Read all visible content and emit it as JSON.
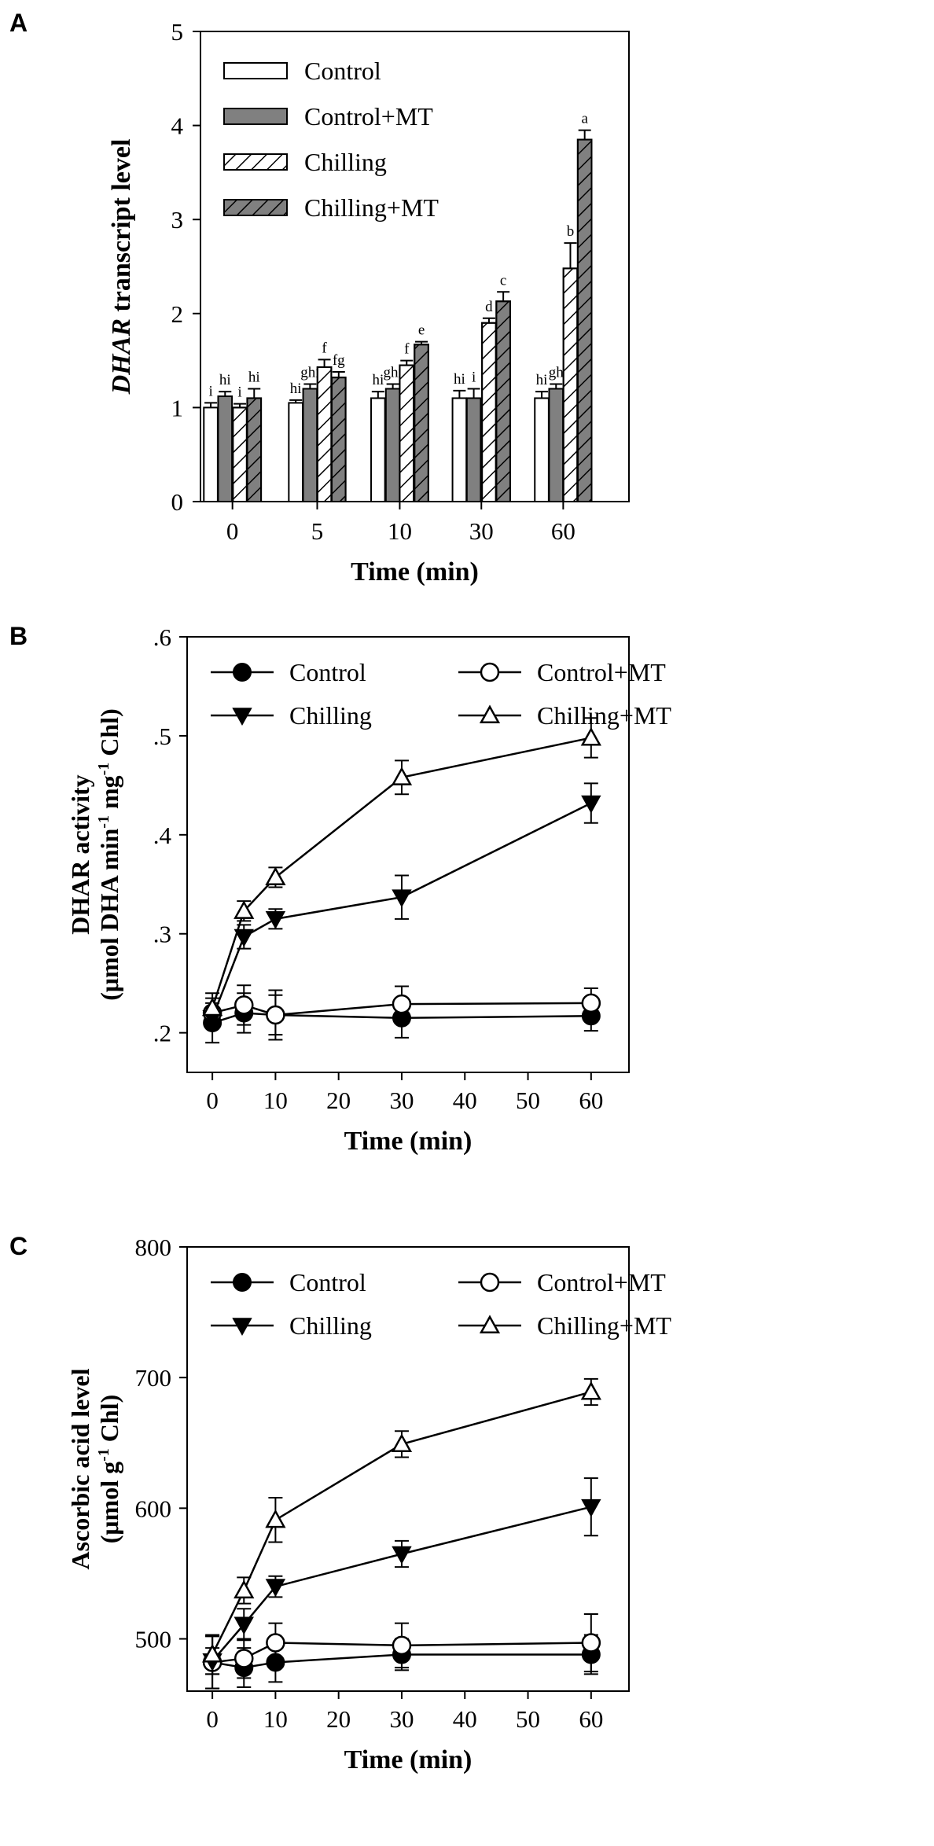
{
  "chart_data": [
    {
      "panel": "A",
      "type": "bar",
      "categories": [
        "0",
        "5",
        "10",
        "30",
        "60"
      ],
      "xlabel": "Time (min)",
      "ylabel_italic": "DHAR",
      "ylabel_rest": " transcript level",
      "ylim": [
        0,
        5
      ],
      "yticks": [
        "0",
        "1",
        "2",
        "3",
        "4",
        "5"
      ],
      "legend_position": "top-left",
      "series": [
        {
          "name": "Control",
          "fill": "#ffffff",
          "hatch": false,
          "values": [
            1.0,
            1.05,
            1.1,
            1.1,
            1.1
          ],
          "errors": [
            0.05,
            0.03,
            0.07,
            0.08,
            0.07
          ],
          "letters": [
            "i",
            "hi",
            "hi",
            "hi",
            "hi"
          ]
        },
        {
          "name": "Control+MT",
          "fill": "#808080",
          "hatch": false,
          "values": [
            1.12,
            1.2,
            1.2,
            1.1,
            1.2
          ],
          "errors": [
            0.05,
            0.05,
            0.05,
            0.1,
            0.05
          ],
          "letters": [
            "hi",
            "ghi",
            "ghi",
            "i",
            "gh"
          ]
        },
        {
          "name": "Chilling",
          "fill": "#ffffff",
          "hatch": true,
          "values": [
            1.0,
            1.43,
            1.45,
            1.9,
            2.48
          ],
          "errors": [
            0.04,
            0.08,
            0.05,
            0.05,
            0.27
          ],
          "letters": [
            "i",
            "f",
            "f",
            "d",
            "b"
          ]
        },
        {
          "name": "Chilling+MT",
          "fill": "#808080",
          "hatch": true,
          "values": [
            1.1,
            1.32,
            1.67,
            2.13,
            3.85
          ],
          "errors": [
            0.1,
            0.06,
            0.03,
            0.1,
            0.1
          ],
          "letters": [
            "hi",
            "fg",
            "e",
            "c",
            "a"
          ]
        }
      ]
    },
    {
      "panel": "B",
      "type": "line",
      "x": [
        0,
        5,
        10,
        30,
        60
      ],
      "xlabel": "Time (min)",
      "ylabel_line1": "DHAR activity",
      "ylabel_line2": "(μmol DHA min",
      "ylabel_sup1": "-1",
      "ylabel_mid": " mg",
      "ylabel_sup2": "-1",
      "ylabel_end": " Chl)",
      "xlim": [
        -4,
        66
      ],
      "ylim": [
        0.16,
        0.6
      ],
      "xticks": [
        "0",
        "10",
        "20",
        "30",
        "40",
        "50",
        "60"
      ],
      "yticks": [
        ".2",
        ".3",
        ".4",
        ".5",
        ".6"
      ],
      "legend_position": "top",
      "series": [
        {
          "name": "Control",
          "marker": "circle-filled",
          "values": [
            0.21,
            0.22,
            0.218,
            0.215,
            0.217
          ],
          "errors": [
            0.02,
            0.02,
            0.02,
            0.02,
            0.015
          ]
        },
        {
          "name": "Control+MT",
          "marker": "circle-open",
          "values": [
            0.22,
            0.228,
            0.218,
            0.229,
            0.23
          ],
          "errors": [
            0.015,
            0.02,
            0.025,
            0.018,
            0.015
          ]
        },
        {
          "name": "Chilling",
          "marker": "triangle-down-filled",
          "values": [
            0.215,
            0.297,
            0.315,
            0.337,
            0.432
          ],
          "errors": [
            0.01,
            0.012,
            0.01,
            0.022,
            0.02
          ]
        },
        {
          "name": "Chilling+MT",
          "marker": "triangle-up-open",
          "values": [
            0.225,
            0.323,
            0.357,
            0.458,
            0.498
          ],
          "errors": [
            0.015,
            0.01,
            0.01,
            0.017,
            0.02
          ]
        }
      ]
    },
    {
      "panel": "C",
      "type": "line",
      "x": [
        0,
        5,
        10,
        30,
        60
      ],
      "xlabel": "Time (min)",
      "ylabel_line1": "Ascorbic acid level",
      "ylabel_line2": "(μmol g",
      "ylabel_sup1": "-1",
      "ylabel_end": " Chl)",
      "xlim": [
        -4,
        66
      ],
      "ylim": [
        460,
        800
      ],
      "xticks": [
        "0",
        "10",
        "20",
        "30",
        "40",
        "50",
        "60"
      ],
      "yticks": [
        "500",
        "600",
        "700",
        "800"
      ],
      "legend_position": "top",
      "series": [
        {
          "name": "Control",
          "marker": "circle-filled",
          "values": [
            482,
            478,
            482,
            488,
            488
          ],
          "errors": [
            20,
            15,
            15,
            12,
            15
          ]
        },
        {
          "name": "Control+MT",
          "marker": "circle-open",
          "values": [
            482,
            485,
            497,
            495,
            497
          ],
          "errors": [
            20,
            15,
            15,
            17,
            22
          ]
        },
        {
          "name": "Chilling",
          "marker": "triangle-down-filled",
          "values": [
            483,
            511,
            540,
            565,
            601
          ],
          "errors": [
            10,
            12,
            8,
            10,
            22
          ]
        },
        {
          "name": "Chilling+MT",
          "marker": "triangle-up-open",
          "values": [
            488,
            537,
            591,
            649,
            689
          ],
          "errors": [
            15,
            10,
            17,
            10,
            10
          ]
        }
      ]
    }
  ]
}
